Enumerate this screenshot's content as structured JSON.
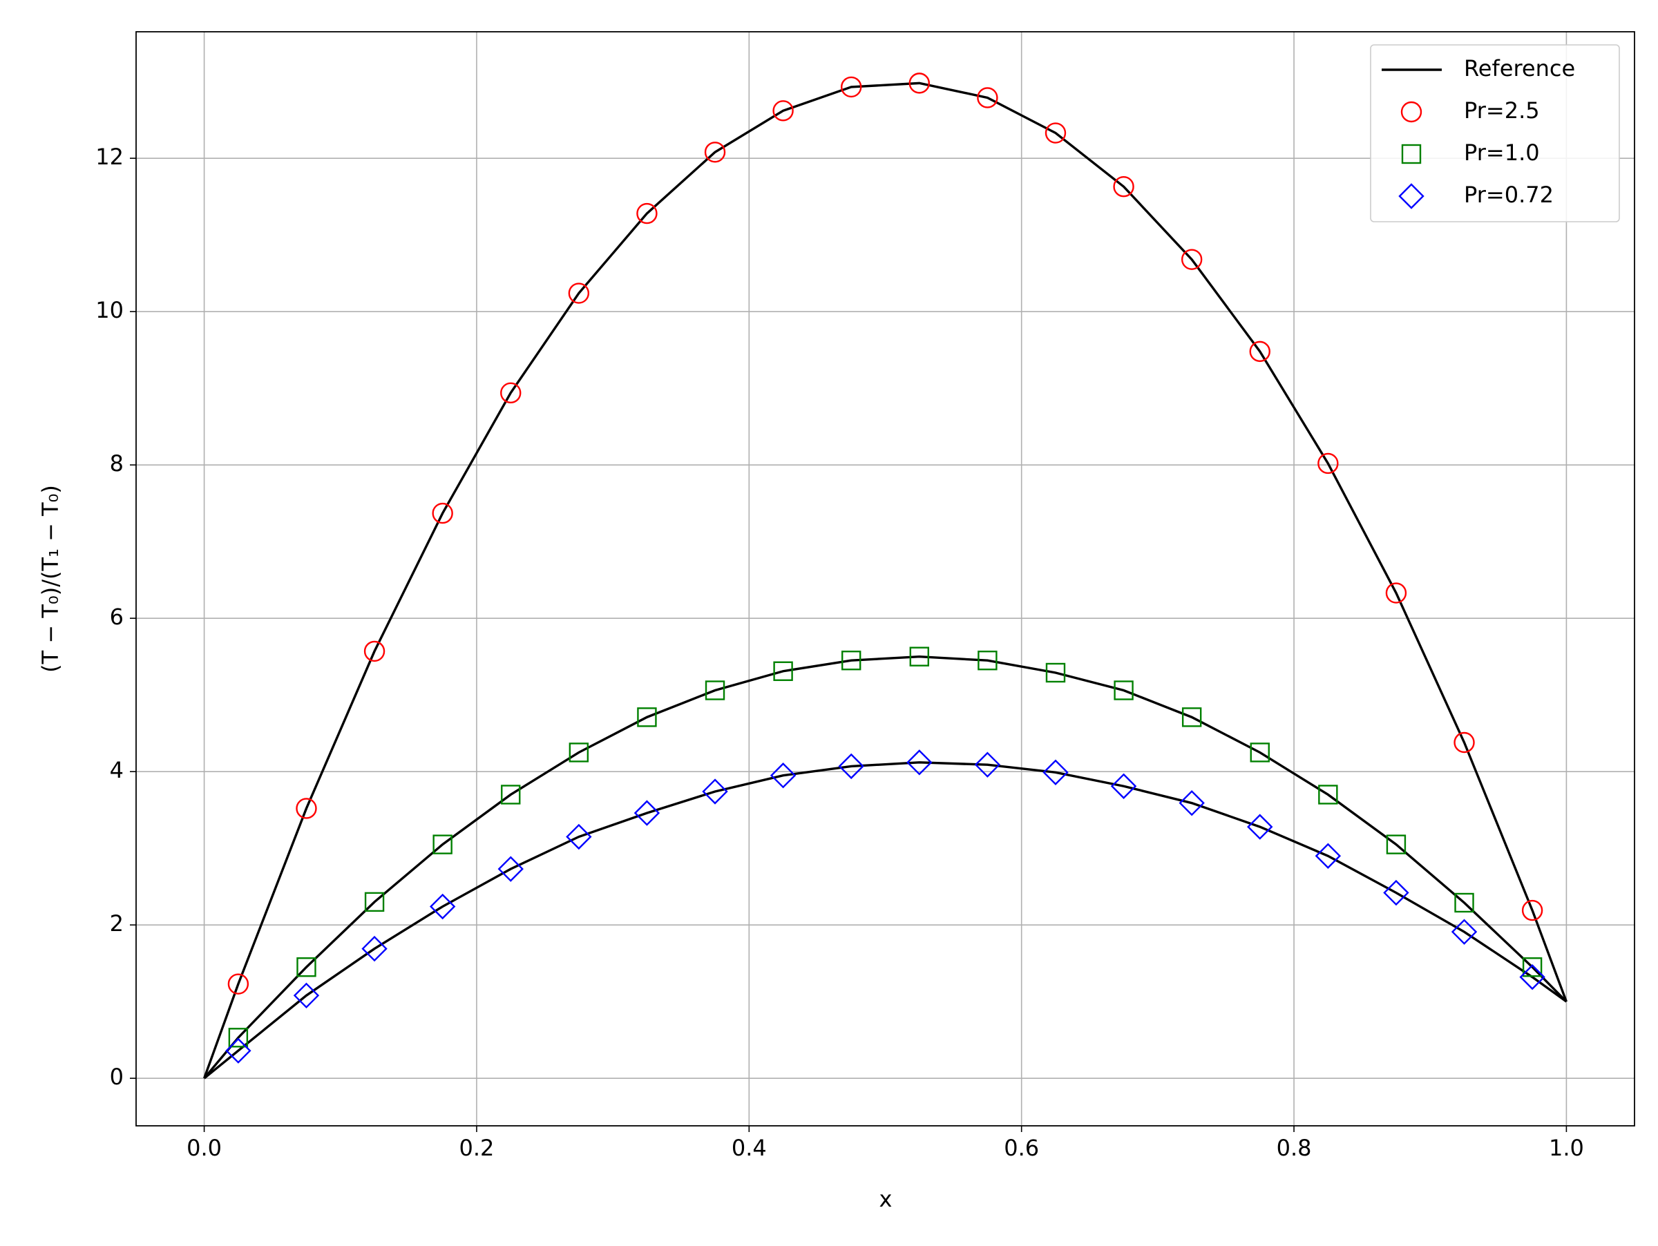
{
  "chart_data": {
    "type": "line-scatter",
    "xlabel": "x",
    "ylabel": "(T − T₀)/(T₁ − T₀)",
    "xlim": [
      -0.05,
      1.05
    ],
    "ylim": [
      -0.62,
      13.65
    ],
    "xticks": [
      {
        "value": 0,
        "label": "0.0"
      },
      0.2,
      0.4,
      0.6,
      0.8,
      {
        "value": 1,
        "label": "1.0"
      }
    ],
    "yticks": [
      0,
      2,
      4,
      6,
      8,
      10,
      12
    ],
    "grid": true,
    "legend": "upper right",
    "x": [
      0.025,
      0.075,
      0.125,
      0.175,
      0.225,
      0.275,
      0.325,
      0.375,
      0.425,
      0.475,
      0.525,
      0.575,
      0.625,
      0.675,
      0.725,
      0.775,
      0.825,
      0.875,
      0.925,
      0.975
    ],
    "reference": {
      "name": "Reference",
      "color": "#000000",
      "x": [
        0,
        0.025,
        0.075,
        0.125,
        0.175,
        0.225,
        0.275,
        0.325,
        0.375,
        0.425,
        0.475,
        0.525,
        0.575,
        0.625,
        0.675,
        0.725,
        0.775,
        0.825,
        0.875,
        0.925,
        0.975,
        1
      ],
      "curves": [
        [
          0,
          1.23,
          3.52,
          5.57,
          7.37,
          8.94,
          10.24,
          11.28,
          12.08,
          12.62,
          12.93,
          12.98,
          12.79,
          12.33,
          11.63,
          10.68,
          9.48,
          8.02,
          6.33,
          4.38,
          2.19,
          1
        ],
        [
          0,
          0.53,
          1.45,
          2.3,
          3.05,
          3.7,
          4.25,
          4.71,
          5.06,
          5.31,
          5.45,
          5.5,
          5.45,
          5.29,
          5.06,
          4.71,
          4.25,
          3.7,
          3.05,
          2.29,
          1.45,
          1
        ],
        [
          0,
          0.36,
          1.08,
          1.69,
          2.24,
          2.73,
          3.15,
          3.46,
          3.74,
          3.95,
          4.07,
          4.12,
          4.09,
          3.99,
          3.81,
          3.59,
          3.28,
          2.9,
          2.42,
          1.91,
          1.32,
          1
        ]
      ]
    },
    "series": [
      {
        "name": "Pr=2.5",
        "color": "#ff0000",
        "marker": "circle",
        "values": [
          1.23,
          3.52,
          5.57,
          7.37,
          8.94,
          10.24,
          11.28,
          12.08,
          12.62,
          12.93,
          12.98,
          12.79,
          12.33,
          11.63,
          10.68,
          9.48,
          8.02,
          6.33,
          4.38,
          2.19
        ]
      },
      {
        "name": "Pr=1.0",
        "color": "#008000",
        "marker": "square",
        "values": [
          0.53,
          1.45,
          2.3,
          3.05,
          3.7,
          4.25,
          4.71,
          5.06,
          5.31,
          5.45,
          5.5,
          5.45,
          5.29,
          5.06,
          4.71,
          4.25,
          3.7,
          3.05,
          2.29,
          1.45
        ]
      },
      {
        "name": "Pr=0.72",
        "color": "#0000ff",
        "marker": "diamond",
        "values": [
          0.36,
          1.08,
          1.69,
          2.24,
          2.73,
          3.15,
          3.46,
          3.74,
          3.95,
          4.07,
          4.12,
          4.09,
          3.99,
          3.81,
          3.59,
          3.28,
          2.9,
          2.42,
          1.91,
          1.32
        ]
      }
    ]
  }
}
